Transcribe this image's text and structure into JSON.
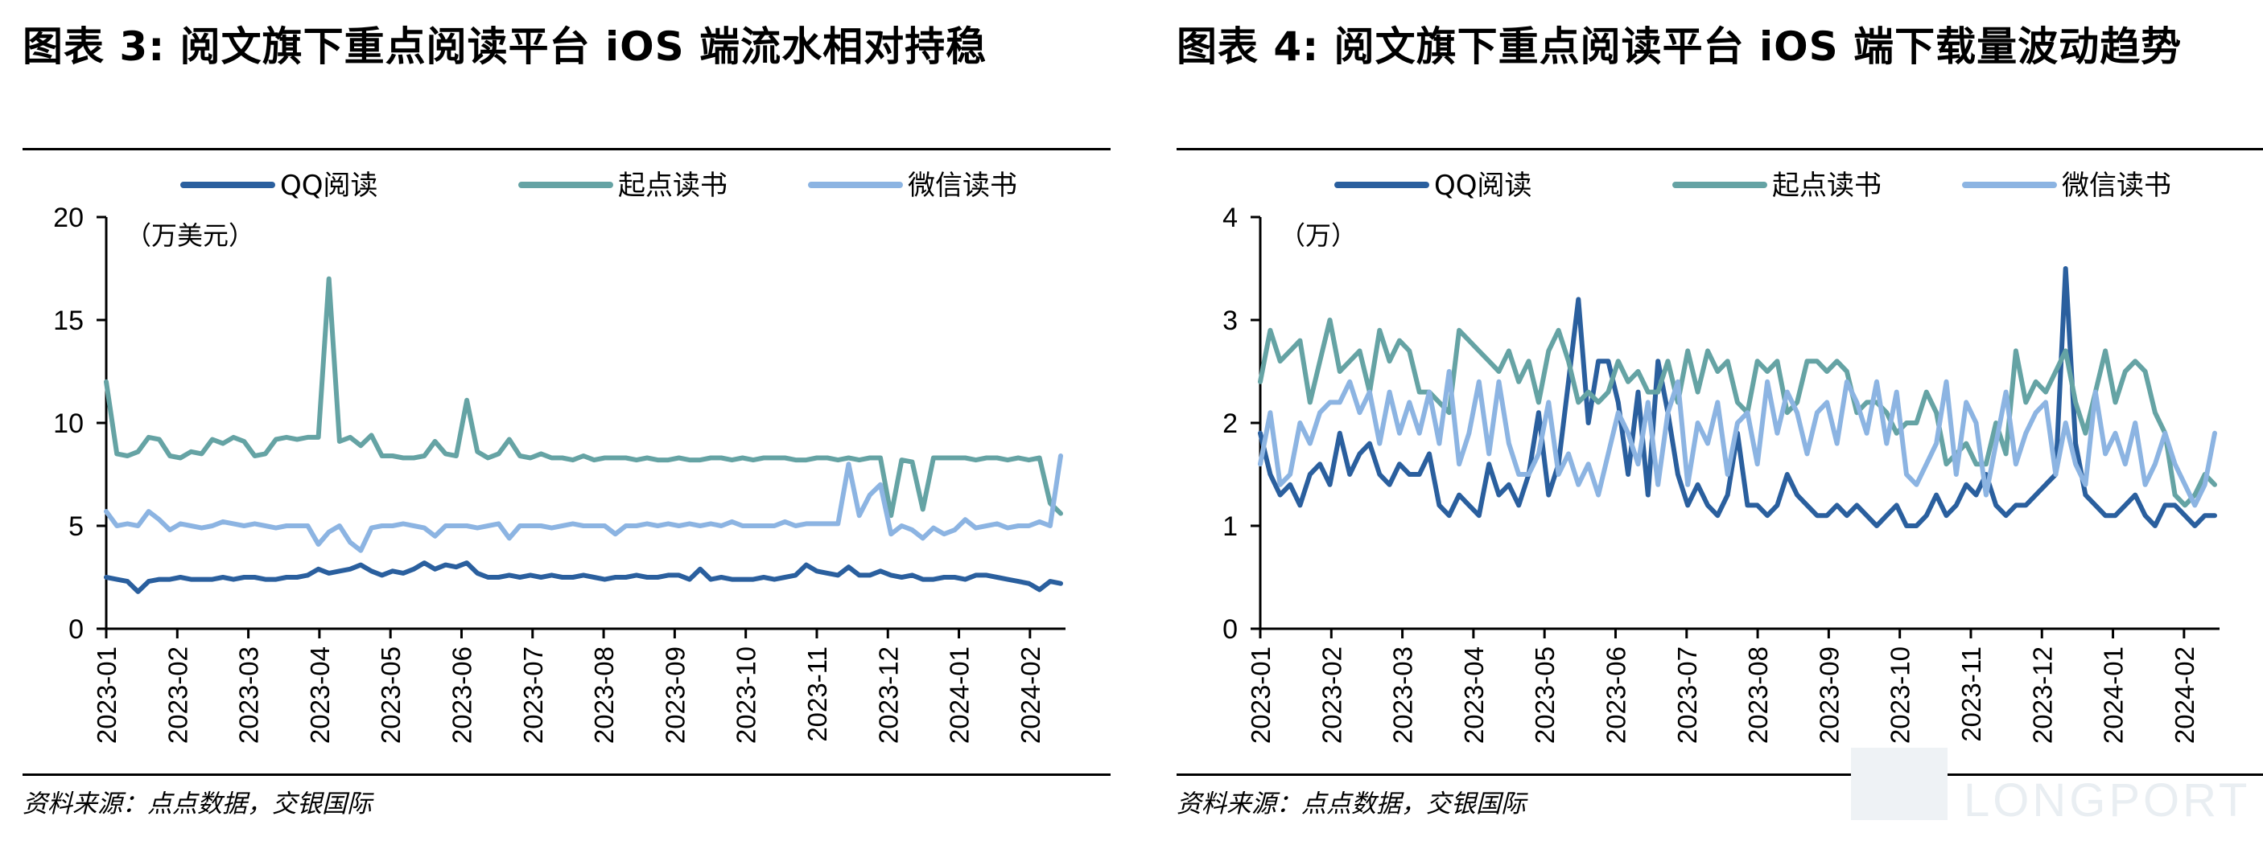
{
  "figures": [
    {
      "title": "图表 3: 阅文旗下重点阅读平台 iOS 端流水相对持稳",
      "source": "资料来源：点点数据，交银国际"
    },
    {
      "title": "图表 4: 阅文旗下重点阅读平台 iOS 端下载量波动趋势",
      "source": "资料来源：点点数据，交银国际"
    }
  ],
  "watermark": "LONGPORT",
  "colors": {
    "QQ阅读": "#2a5f9e",
    "起点读书": "#65a3a4",
    "微信读书": "#8cb4e2",
    "axis": "#000000"
  },
  "chart_data": [
    {
      "type": "line",
      "unit_label": "（万美元）",
      "ylim": [
        0,
        20
      ],
      "yticks": [
        0,
        5,
        10,
        15,
        20
      ],
      "xlabels": [
        "2023-01",
        "2023-02",
        "2023-03",
        "2023-04",
        "2023-05",
        "2023-06",
        "2023-07",
        "2023-08",
        "2023-09",
        "2023-10",
        "2023-11",
        "2023-12",
        "2024-01",
        "2024-02"
      ],
      "x_end": 13.5,
      "legend_position": "top",
      "series": [
        {
          "name": "QQ阅读",
          "color": "#2a5f9e",
          "values": [
            2.5,
            2.4,
            2.3,
            1.8,
            2.3,
            2.4,
            2.4,
            2.5,
            2.4,
            2.4,
            2.4,
            2.5,
            2.4,
            2.5,
            2.5,
            2.4,
            2.4,
            2.5,
            2.5,
            2.6,
            2.9,
            2.7,
            2.8,
            2.9,
            3.1,
            2.8,
            2.6,
            2.8,
            2.7,
            2.9,
            3.2,
            2.9,
            3.1,
            3.0,
            3.2,
            2.7,
            2.5,
            2.5,
            2.6,
            2.5,
            2.6,
            2.5,
            2.6,
            2.5,
            2.5,
            2.6,
            2.5,
            2.4,
            2.5,
            2.5,
            2.6,
            2.5,
            2.5,
            2.6,
            2.6,
            2.4,
            2.9,
            2.4,
            2.5,
            2.4,
            2.4,
            2.4,
            2.5,
            2.4,
            2.5,
            2.6,
            3.1,
            2.8,
            2.7,
            2.6,
            3.0,
            2.6,
            2.6,
            2.8,
            2.6,
            2.5,
            2.6,
            2.4,
            2.4,
            2.5,
            2.5,
            2.4,
            2.6,
            2.6,
            2.5,
            2.4,
            2.3,
            2.2,
            1.9,
            2.3,
            2.2
          ]
        },
        {
          "name": "起点读书",
          "color": "#65a3a4",
          "values": [
            12.0,
            8.5,
            8.4,
            8.6,
            9.3,
            9.2,
            8.4,
            8.3,
            8.6,
            8.5,
            9.2,
            9.0,
            9.3,
            9.1,
            8.4,
            8.5,
            9.2,
            9.3,
            9.2,
            9.3,
            9.3,
            17.0,
            9.1,
            9.3,
            8.9,
            9.4,
            8.4,
            8.4,
            8.3,
            8.3,
            8.4,
            9.1,
            8.5,
            8.4,
            11.1,
            8.6,
            8.3,
            8.5,
            9.2,
            8.4,
            8.3,
            8.5,
            8.3,
            8.3,
            8.2,
            8.4,
            8.2,
            8.3,
            8.3,
            8.3,
            8.2,
            8.3,
            8.2,
            8.2,
            8.3,
            8.2,
            8.2,
            8.3,
            8.3,
            8.2,
            8.3,
            8.2,
            8.3,
            8.3,
            8.3,
            8.2,
            8.2,
            8.3,
            8.3,
            8.2,
            8.3,
            8.2,
            8.3,
            8.3,
            5.5,
            8.2,
            8.1,
            5.8,
            8.3,
            8.3,
            8.3,
            8.3,
            8.2,
            8.3,
            8.3,
            8.2,
            8.3,
            8.2,
            8.3,
            6.1,
            5.6
          ]
        },
        {
          "name": "微信读书",
          "color": "#8cb4e2",
          "values": [
            5.7,
            5.0,
            5.1,
            5.0,
            5.7,
            5.3,
            4.8,
            5.1,
            5.0,
            4.9,
            5.0,
            5.2,
            5.1,
            5.0,
            5.1,
            5.0,
            4.9,
            5.0,
            5.0,
            5.0,
            4.1,
            4.7,
            5.0,
            4.2,
            3.8,
            4.9,
            5.0,
            5.0,
            5.1,
            5.0,
            4.9,
            4.5,
            5.0,
            5.0,
            5.0,
            4.9,
            5.0,
            5.1,
            4.4,
            5.0,
            5.0,
            5.0,
            4.9,
            5.0,
            5.1,
            5.0,
            5.0,
            5.0,
            4.6,
            5.0,
            5.0,
            5.1,
            5.0,
            5.1,
            5.0,
            5.1,
            5.0,
            5.1,
            5.0,
            5.2,
            5.0,
            5.0,
            5.0,
            5.0,
            5.2,
            5.0,
            5.1,
            5.1,
            5.1,
            5.1,
            8.0,
            5.5,
            6.5,
            7.0,
            4.6,
            5.0,
            4.8,
            4.4,
            4.9,
            4.6,
            4.8,
            5.3,
            4.9,
            5.0,
            5.1,
            4.9,
            5.0,
            5.0,
            5.2,
            5.0,
            8.4
          ]
        }
      ]
    },
    {
      "type": "line",
      "unit_label": "（万）",
      "ylim": [
        0,
        4
      ],
      "yticks": [
        0,
        1,
        2,
        3,
        4
      ],
      "xlabels": [
        "2023-01",
        "2023-02",
        "2023-03",
        "2023-04",
        "2023-05",
        "2023-06",
        "2023-07",
        "2023-08",
        "2023-09",
        "2023-10",
        "2023-11",
        "2023-12",
        "2024-01",
        "2024-02"
      ],
      "x_end": 13.5,
      "legend_position": "top",
      "series": [
        {
          "name": "QQ阅读",
          "color": "#2a5f9e",
          "values": [
            1.9,
            1.5,
            1.3,
            1.4,
            1.2,
            1.5,
            1.6,
            1.4,
            1.9,
            1.5,
            1.7,
            1.8,
            1.5,
            1.4,
            1.6,
            1.5,
            1.5,
            1.7,
            1.2,
            1.1,
            1.3,
            1.2,
            1.1,
            1.6,
            1.3,
            1.4,
            1.2,
            1.5,
            2.1,
            1.3,
            1.6,
            2.4,
            3.2,
            2.0,
            2.6,
            2.6,
            2.2,
            1.5,
            2.3,
            1.3,
            2.6,
            2.1,
            1.5,
            1.2,
            1.4,
            1.2,
            1.1,
            1.3,
            1.9,
            1.2,
            1.2,
            1.1,
            1.2,
            1.5,
            1.3,
            1.2,
            1.1,
            1.1,
            1.2,
            1.1,
            1.2,
            1.1,
            1.0,
            1.1,
            1.2,
            1.0,
            1.0,
            1.1,
            1.3,
            1.1,
            1.2,
            1.4,
            1.3,
            1.5,
            1.2,
            1.1,
            1.2,
            1.2,
            1.3,
            1.4,
            1.5,
            3.5,
            1.8,
            1.3,
            1.2,
            1.1,
            1.1,
            1.2,
            1.3,
            1.1,
            1.0,
            1.2,
            1.2,
            1.1,
            1.0,
            1.1,
            1.1
          ]
        },
        {
          "name": "起点读书",
          "color": "#65a3a4",
          "values": [
            2.4,
            2.9,
            2.6,
            2.7,
            2.8,
            2.2,
            2.6,
            3.0,
            2.5,
            2.6,
            2.7,
            2.3,
            2.9,
            2.6,
            2.8,
            2.7,
            2.3,
            2.3,
            2.2,
            2.1,
            2.9,
            2.8,
            2.7,
            2.6,
            2.5,
            2.7,
            2.4,
            2.6,
            2.2,
            2.7,
            2.9,
            2.6,
            2.2,
            2.3,
            2.2,
            2.3,
            2.6,
            2.4,
            2.5,
            2.3,
            2.3,
            2.6,
            2.2,
            2.7,
            2.3,
            2.7,
            2.5,
            2.6,
            2.2,
            2.1,
            2.6,
            2.5,
            2.6,
            2.1,
            2.2,
            2.6,
            2.6,
            2.5,
            2.6,
            2.5,
            2.1,
            2.2,
            2.2,
            2.1,
            1.9,
            2.0,
            2.0,
            2.3,
            2.1,
            1.6,
            1.7,
            1.8,
            1.6,
            1.6,
            2.0,
            1.7,
            2.7,
            2.2,
            2.4,
            2.3,
            2.5,
            2.7,
            2.2,
            1.9,
            2.3,
            2.7,
            2.2,
            2.5,
            2.6,
            2.5,
            2.1,
            1.9,
            1.3,
            1.2,
            1.3,
            1.5,
            1.4
          ]
        },
        {
          "name": "微信读书",
          "color": "#8cb4e2",
          "values": [
            1.6,
            2.1,
            1.4,
            1.5,
            2.0,
            1.8,
            2.1,
            2.2,
            2.2,
            2.4,
            2.1,
            2.3,
            1.8,
            2.3,
            1.9,
            2.2,
            1.9,
            2.3,
            1.8,
            2.5,
            1.6,
            1.9,
            2.4,
            1.7,
            2.4,
            1.8,
            1.5,
            1.5,
            1.7,
            2.2,
            1.5,
            1.7,
            1.4,
            1.6,
            1.3,
            1.7,
            2.1,
            1.9,
            1.6,
            2.2,
            1.4,
            2.1,
            2.4,
            1.4,
            2.0,
            1.8,
            2.2,
            1.5,
            2.0,
            2.1,
            1.6,
            2.4,
            1.9,
            2.3,
            2.1,
            1.7,
            2.1,
            2.2,
            1.8,
            2.4,
            2.2,
            1.9,
            2.4,
            1.8,
            2.3,
            1.5,
            1.4,
            1.6,
            1.8,
            2.4,
            1.5,
            2.2,
            2.0,
            1.3,
            1.8,
            2.3,
            1.6,
            1.9,
            2.1,
            2.2,
            1.5,
            2.0,
            1.6,
            1.4,
            2.3,
            1.7,
            1.9,
            1.6,
            2.0,
            1.4,
            1.6,
            1.9,
            1.6,
            1.4,
            1.2,
            1.4,
            1.9
          ]
        }
      ]
    }
  ]
}
